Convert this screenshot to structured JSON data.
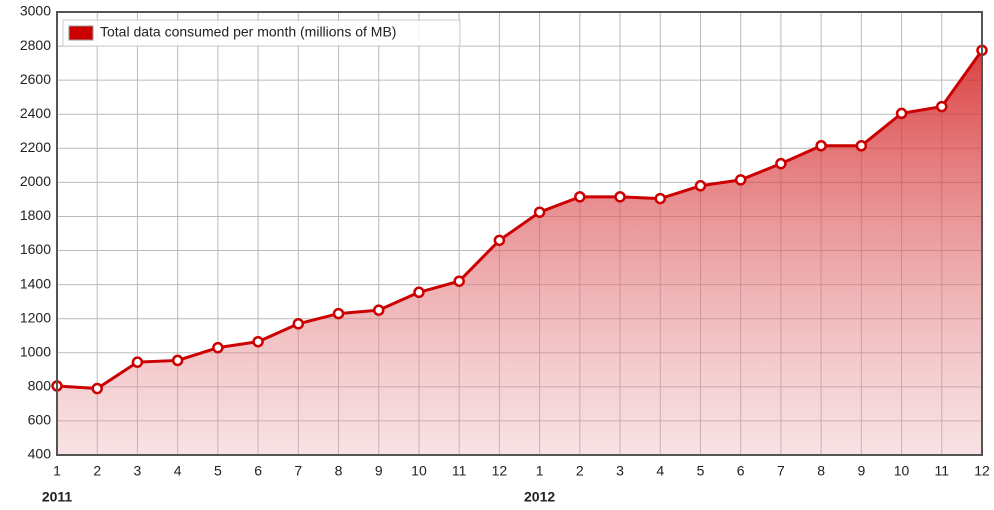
{
  "chart_data": {
    "type": "area",
    "series": [
      {
        "name": "Total data consumed per month (millions of MB)",
        "color": "#cc0000",
        "values": [
          805,
          790,
          945,
          955,
          1030,
          1065,
          1170,
          1230,
          1250,
          1355,
          1420,
          1660,
          1825,
          1915,
          1915,
          1905,
          1980,
          2015,
          2110,
          2215,
          2215,
          2405,
          2445,
          2775
        ]
      }
    ],
    "categories": [
      "1",
      "2",
      "3",
      "4",
      "5",
      "6",
      "7",
      "8",
      "9",
      "10",
      "11",
      "12",
      "1",
      "2",
      "3",
      "4",
      "5",
      "6",
      "7",
      "8",
      "9",
      "10",
      "11",
      "12"
    ],
    "year_labels": [
      "2011",
      "2012"
    ],
    "ylim": [
      400,
      3000
    ],
    "yticks": [
      400,
      600,
      800,
      1000,
      1200,
      1400,
      1600,
      1800,
      2000,
      2200,
      2400,
      2600,
      2800,
      3000
    ],
    "grid": true,
    "legend": "top-left"
  }
}
